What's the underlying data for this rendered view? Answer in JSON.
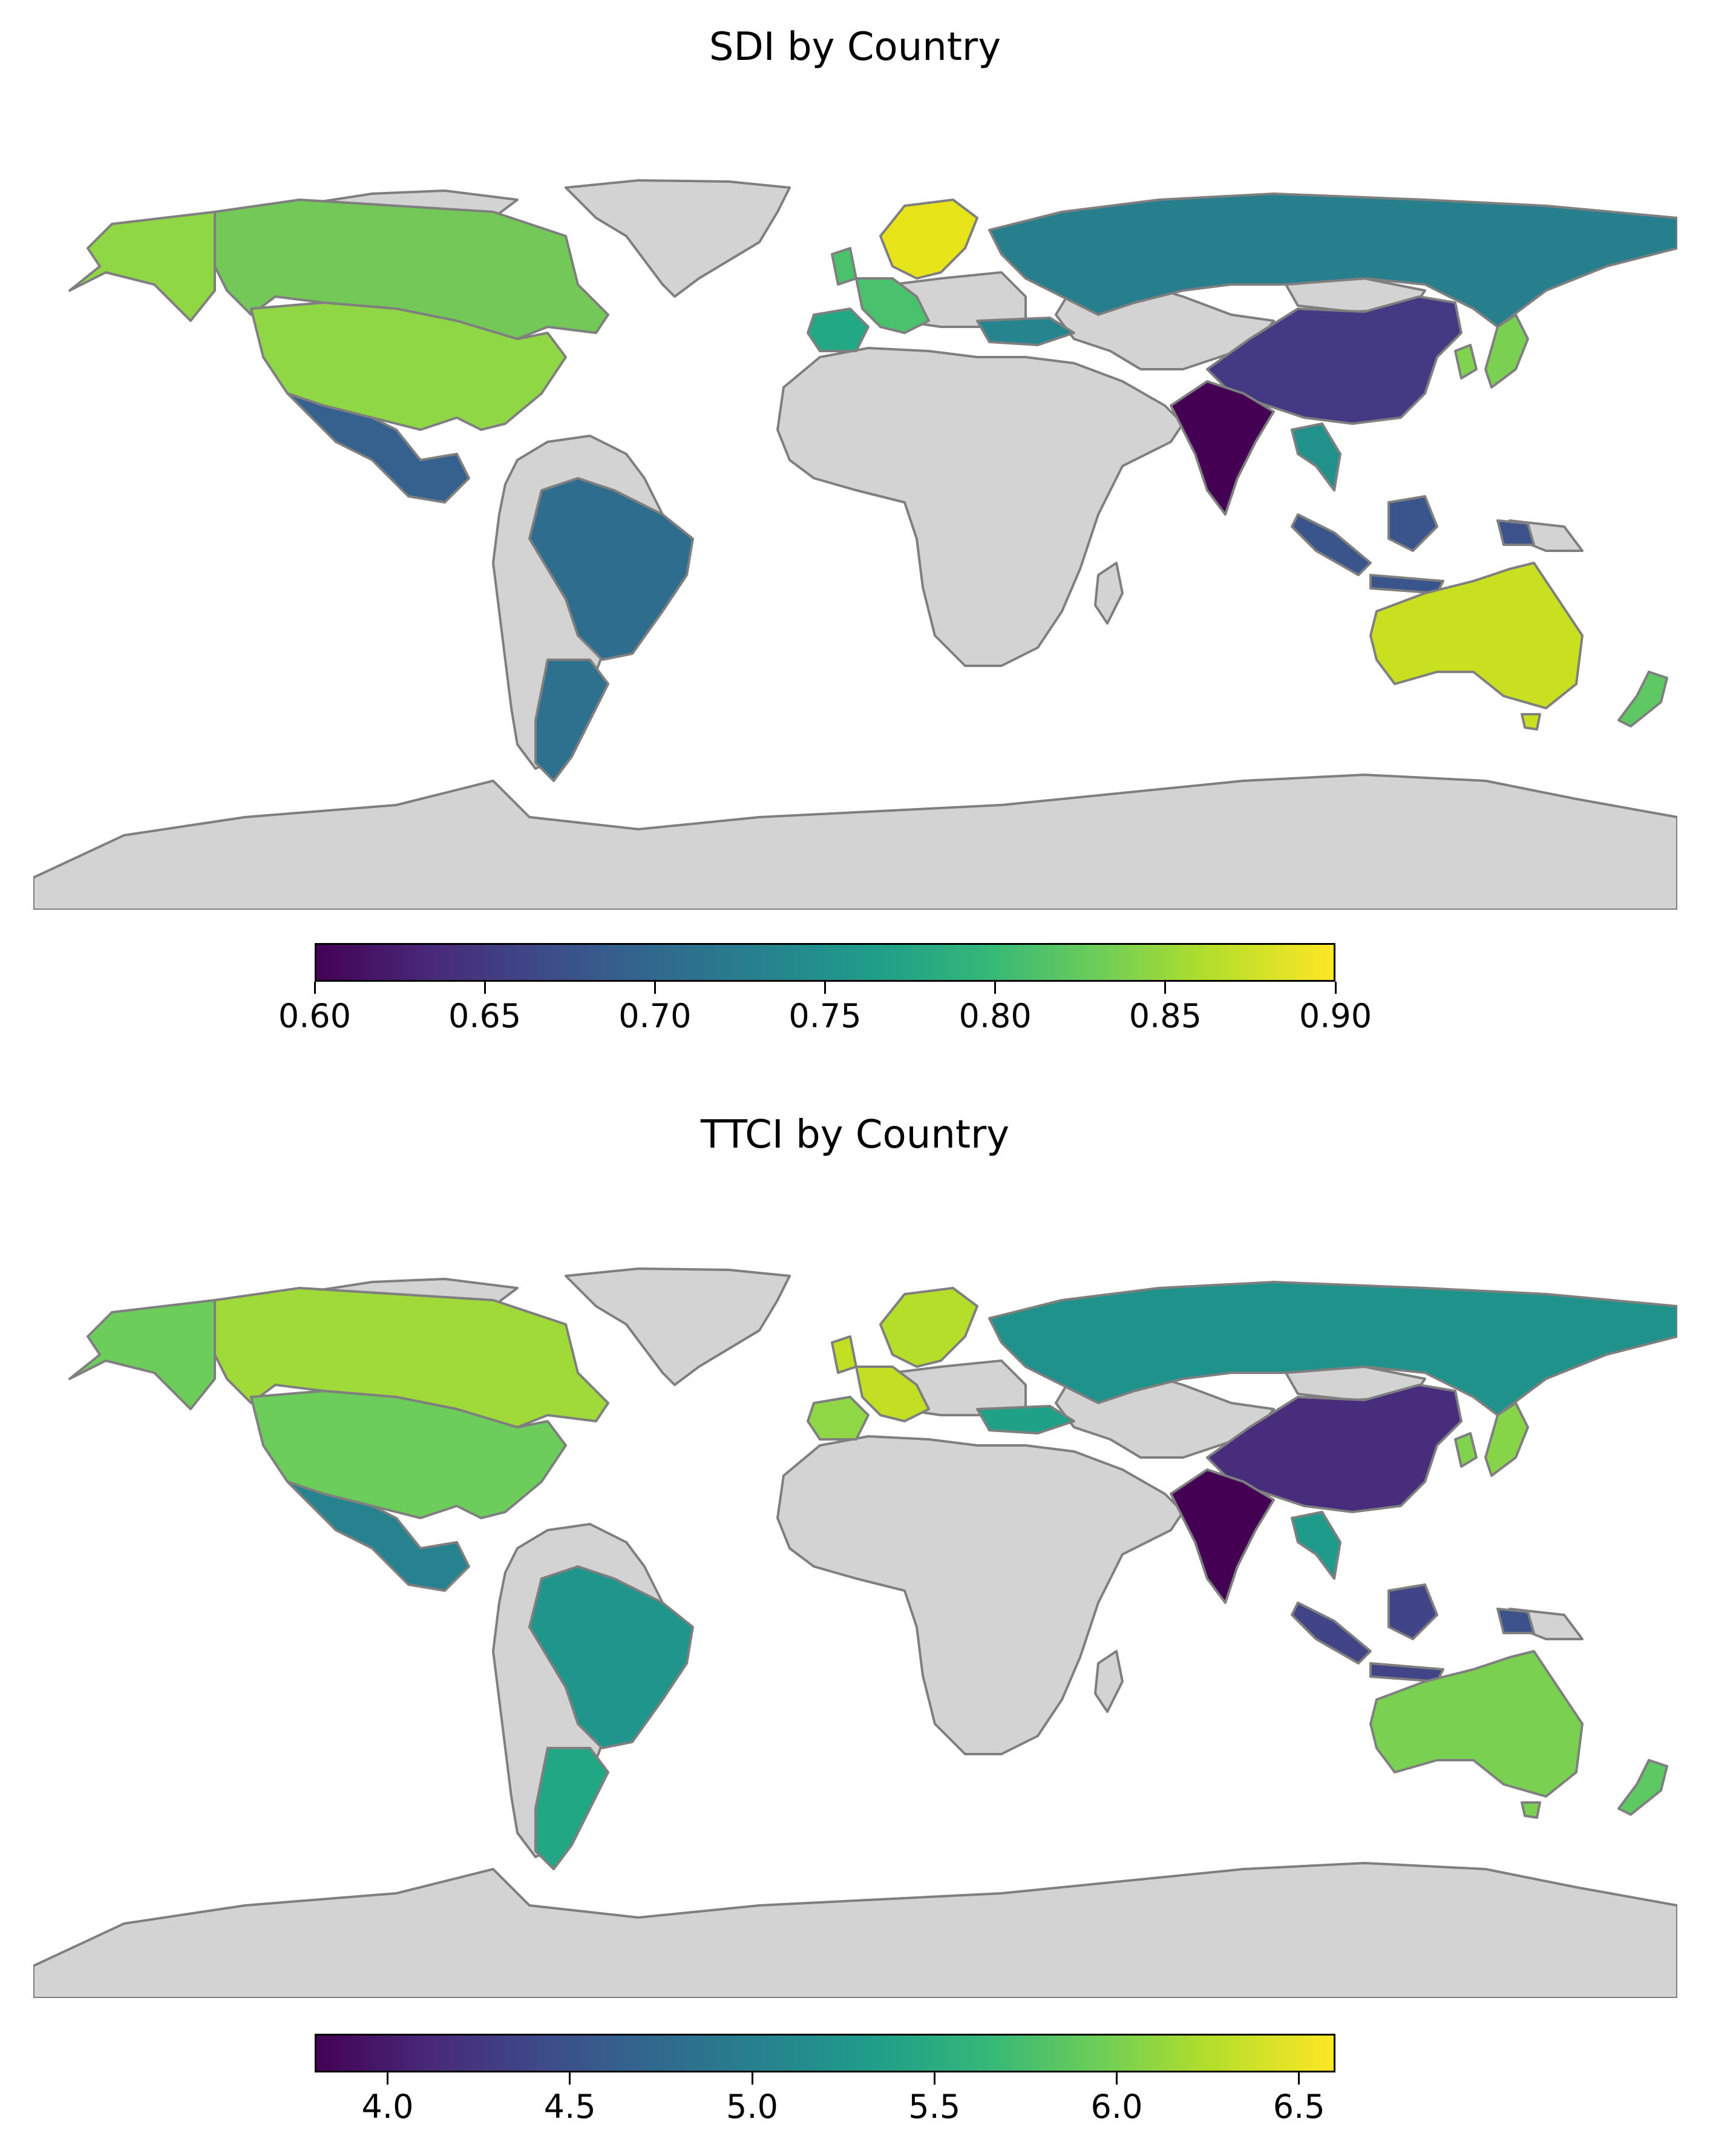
{
  "maps": [
    {
      "title": "SDI by Country",
      "colorbar": {
        "ticks": [
          "0.60",
          "0.65",
          "0.70",
          "0.75",
          "0.80",
          "0.85",
          "0.90"
        ],
        "min": 0.6,
        "max": 0.9
      },
      "colors": {
        "canada": "#74c857",
        "usa": "#8fd744",
        "mexico": "#34618d",
        "brazil": "#2e6d8e",
        "argentina": "#2d718e",
        "russia": "#277f8e",
        "china": "#443a83",
        "india": "#440154",
        "indonesia": "#3a548c",
        "australia": "#c8e020",
        "japan": "#7ad151",
        "nz": "#5ec962",
        "nordic": "#e7e419",
        "europe": "#4ac16d",
        "iberia": "#22a884",
        "turkey": "#25848e",
        "seasia": "#21918c",
        "korea": "#7fd34e",
        "png": "#3b528b"
      }
    },
    {
      "title": "TTCI by Country",
      "colorbar": {
        "ticks": [
          "4.0",
          "4.5",
          "5.0",
          "5.5",
          "6.0",
          "6.5"
        ],
        "min": 3.8,
        "max": 6.6
      },
      "colors": {
        "canada": "#a0da39",
        "usa": "#6ccd5a",
        "mexico": "#26828e",
        "brazil": "#1f958b",
        "argentina": "#22a785",
        "russia": "#20928c",
        "china": "#472d7b",
        "india": "#440154",
        "indonesia": "#414487",
        "australia": "#7ad151",
        "japan": "#86d549",
        "nz": "#5ec962",
        "nordic": "#b5de2b",
        "europe": "#c2df23",
        "iberia": "#8fd744",
        "turkey": "#1fa187",
        "seasia": "#1e9b8a",
        "korea": "#7fd34e",
        "png": "#3b528b"
      }
    }
  ]
}
